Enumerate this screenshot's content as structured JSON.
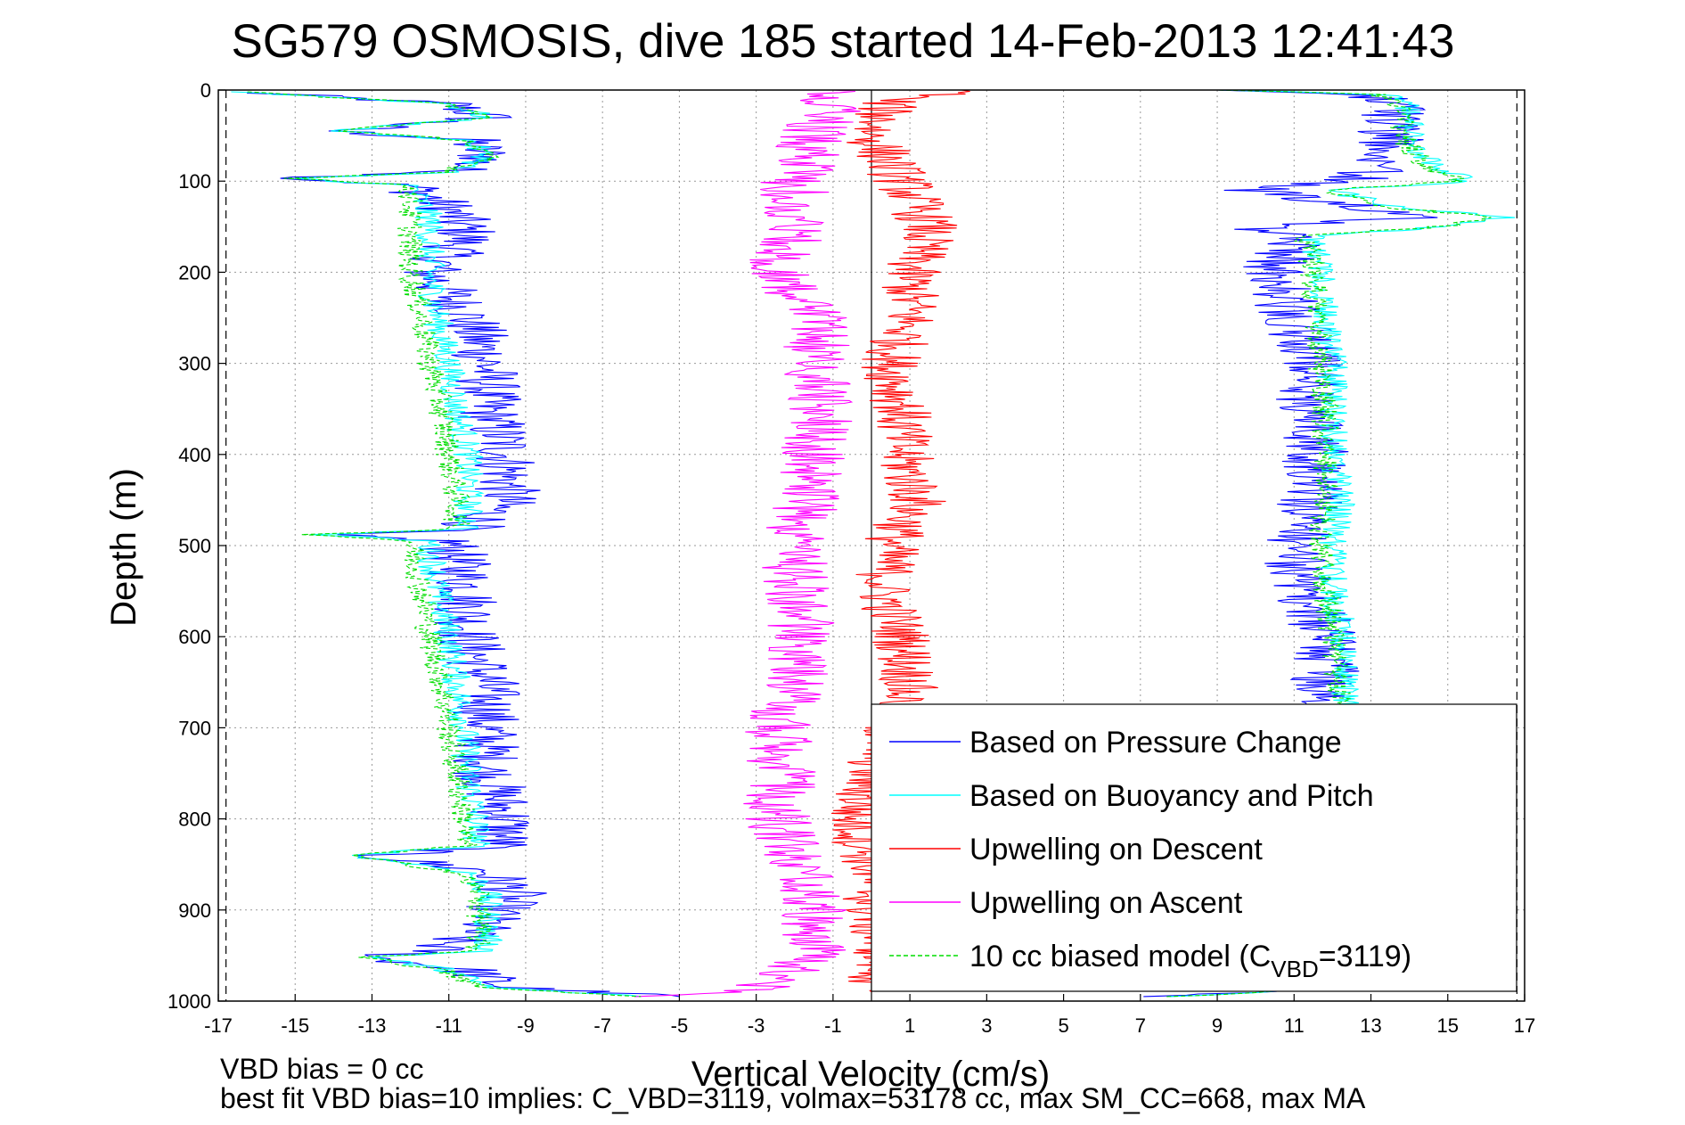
{
  "chart_data": {
    "type": "line",
    "title": "SG579 OSMOSIS, dive 185 started 14-Feb-2013 12:41:43",
    "xlabel": "Vertical Velocity (cm/s)",
    "ylabel": "Depth (m)",
    "xlim": [
      -17,
      17
    ],
    "ylim": [
      0,
      1000
    ],
    "y_reversed": true,
    "grid": true,
    "legend_position": "bottom-right",
    "x_ticks": [
      -17,
      -15,
      -13,
      -11,
      -9,
      -7,
      -5,
      -3,
      -1,
      1,
      3,
      5,
      7,
      9,
      11,
      13,
      15,
      17
    ],
    "y_ticks": [
      0,
      100,
      200,
      300,
      400,
      500,
      600,
      700,
      800,
      900,
      1000
    ],
    "x_tick_labels": [
      "-17",
      "-15",
      "-13",
      "-11",
      "-9",
      "-7",
      "-5",
      "-3",
      "-1",
      "1",
      "3",
      "5",
      "7",
      "9",
      "11",
      "13",
      "15",
      "17"
    ],
    "y_tick_labels": [
      "0",
      "100",
      "200",
      "300",
      "400",
      "500",
      "600",
      "700",
      "800",
      "900",
      "1000"
    ],
    "reference_lines": {
      "dashed_x": [
        -16.8,
        16.8
      ],
      "solid_x": 0
    },
    "series": [
      {
        "name": "Based on Pressure Change",
        "color": "#0000ff",
        "style": "solid",
        "noise": 0.9,
        "descent": [
          [
            2,
            -16.5
          ],
          [
            15,
            -11
          ],
          [
            30,
            -10
          ],
          [
            45,
            -14
          ],
          [
            55,
            -10.5
          ],
          [
            75,
            -10
          ],
          [
            90,
            -11
          ],
          [
            97,
            -15
          ],
          [
            105,
            -12
          ],
          [
            130,
            -11
          ],
          [
            160,
            -10.5
          ],
          [
            200,
            -11.5
          ],
          [
            250,
            -10.5
          ],
          [
            300,
            -10
          ],
          [
            350,
            -10
          ],
          [
            400,
            -9.5
          ],
          [
            450,
            -9.5
          ],
          [
            482,
            -10.5
          ],
          [
            488,
            -14.5
          ],
          [
            495,
            -11
          ],
          [
            550,
            -10.5
          ],
          [
            600,
            -10.5
          ],
          [
            650,
            -10
          ],
          [
            700,
            -10
          ],
          [
            750,
            -10
          ],
          [
            800,
            -9.5
          ],
          [
            830,
            -9.7
          ],
          [
            840,
            -13
          ],
          [
            858,
            -10
          ],
          [
            880,
            -9.3
          ],
          [
            920,
            -10.2
          ],
          [
            945,
            -11.5
          ],
          [
            952,
            -13
          ],
          [
            966,
            -10.5
          ],
          [
            985,
            -9.5
          ],
          [
            995,
            -5
          ]
        ],
        "ascent": [
          [
            995,
            7
          ],
          [
            985,
            12
          ],
          [
            950,
            12
          ],
          [
            900,
            12
          ],
          [
            850,
            12
          ],
          [
            800,
            12
          ],
          [
            750,
            12
          ],
          [
            700,
            12
          ],
          [
            650,
            11.8
          ],
          [
            600,
            11.8
          ],
          [
            550,
            11.3
          ],
          [
            500,
            11
          ],
          [
            450,
            11.5
          ],
          [
            400,
            11.6
          ],
          [
            350,
            11.3
          ],
          [
            300,
            11.5
          ],
          [
            250,
            11
          ],
          [
            200,
            10.5
          ],
          [
            160,
            11
          ],
          [
            150,
            10
          ],
          [
            140,
            14
          ],
          [
            128,
            13
          ],
          [
            110,
            10
          ],
          [
            100,
            12.5
          ],
          [
            80,
            13.5
          ],
          [
            50,
            13.5
          ],
          [
            20,
            13.5
          ],
          [
            5,
            13
          ],
          [
            0,
            9
          ]
        ]
      },
      {
        "name": "Based on Buoyancy and Pitch",
        "color": "#00ffff",
        "style": "solid",
        "noise": 0.4,
        "descent": [
          [
            2,
            -16.5
          ],
          [
            15,
            -11
          ],
          [
            30,
            -10
          ],
          [
            45,
            -14
          ],
          [
            55,
            -10.5
          ],
          [
            75,
            -10
          ],
          [
            90,
            -11
          ],
          [
            97,
            -15
          ],
          [
            105,
            -12
          ],
          [
            140,
            -11.5
          ],
          [
            200,
            -11.5
          ],
          [
            250,
            -11.3
          ],
          [
            300,
            -11
          ],
          [
            350,
            -10.8
          ],
          [
            400,
            -10.5
          ],
          [
            450,
            -10.5
          ],
          [
            482,
            -10.5
          ],
          [
            488,
            -14.5
          ],
          [
            495,
            -11.5
          ],
          [
            550,
            -11.3
          ],
          [
            600,
            -11
          ],
          [
            650,
            -10.8
          ],
          [
            700,
            -10.6
          ],
          [
            750,
            -10.5
          ],
          [
            800,
            -10.3
          ],
          [
            830,
            -10.3
          ],
          [
            840,
            -13.5
          ],
          [
            858,
            -10.5
          ],
          [
            880,
            -10
          ],
          [
            920,
            -10
          ],
          [
            945,
            -10
          ],
          [
            952,
            -13
          ],
          [
            966,
            -11
          ],
          [
            985,
            -10
          ],
          [
            995,
            -6
          ]
        ],
        "ascent": [
          [
            995,
            8
          ],
          [
            985,
            12.5
          ],
          [
            950,
            12.5
          ],
          [
            900,
            12.5
          ],
          [
            850,
            12.5
          ],
          [
            800,
            12.5
          ],
          [
            750,
            12.5
          ],
          [
            700,
            12.5
          ],
          [
            650,
            12.3
          ],
          [
            600,
            12.3
          ],
          [
            550,
            12
          ],
          [
            500,
            12
          ],
          [
            450,
            12.2
          ],
          [
            400,
            12
          ],
          [
            350,
            12
          ],
          [
            300,
            12
          ],
          [
            250,
            11.8
          ],
          [
            200,
            11.7
          ],
          [
            160,
            11.5
          ],
          [
            150,
            15
          ],
          [
            140,
            16.5
          ],
          [
            128,
            13.5
          ],
          [
            110,
            12
          ],
          [
            100,
            15.5
          ],
          [
            80,
            14.5
          ],
          [
            50,
            14
          ],
          [
            20,
            14
          ],
          [
            5,
            13.5
          ],
          [
            0,
            9
          ]
        ]
      },
      {
        "name": "Upwelling on Descent",
        "color": "#ff0000",
        "style": "solid",
        "noise": 0.8,
        "descent": [
          [
            0,
            3
          ],
          [
            10,
            0.5
          ],
          [
            50,
            0
          ],
          [
            100,
            0.8
          ],
          [
            150,
            1.5
          ],
          [
            200,
            1
          ],
          [
            250,
            1
          ],
          [
            300,
            0.5
          ],
          [
            350,
            0.8
          ],
          [
            400,
            0.8
          ],
          [
            450,
            1.2
          ],
          [
            500,
            0.5
          ],
          [
            550,
            0.3
          ],
          [
            600,
            0.8
          ],
          [
            650,
            1
          ],
          [
            700,
            0.5
          ],
          [
            750,
            0
          ],
          [
            800,
            -0.5
          ],
          [
            850,
            0
          ],
          [
            900,
            0
          ],
          [
            950,
            0.3
          ],
          [
            990,
            0
          ]
        ],
        "ascent": []
      },
      {
        "name": "Upwelling on Ascent",
        "color": "#ff00ff",
        "style": "solid",
        "noise": 0.9,
        "descent": [],
        "ascent": [
          [
            995,
            -7
          ],
          [
            990,
            -3
          ],
          [
            950,
            -1.5
          ],
          [
            900,
            -1.5
          ],
          [
            850,
            -2
          ],
          [
            800,
            -2.5
          ],
          [
            750,
            -2.3
          ],
          [
            700,
            -2.5
          ],
          [
            650,
            -2
          ],
          [
            600,
            -1.8
          ],
          [
            550,
            -2
          ],
          [
            500,
            -2
          ],
          [
            450,
            -1.7
          ],
          [
            400,
            -1.5
          ],
          [
            350,
            -1.3
          ],
          [
            300,
            -1.5
          ],
          [
            250,
            -1.2
          ],
          [
            200,
            -2.5
          ],
          [
            150,
            -2
          ],
          [
            100,
            -2
          ],
          [
            50,
            -1.5
          ],
          [
            10,
            -1
          ],
          [
            0,
            -1
          ]
        ]
      },
      {
        "name": "10 cc biased model (C",
        "name_sub": "VBD",
        "name_tail": "=3119)",
        "color": "#00dd00",
        "style": "dashed",
        "noise": 0.35,
        "descent": [
          [
            2,
            -16.5
          ],
          [
            15,
            -11
          ],
          [
            30,
            -10
          ],
          [
            45,
            -14
          ],
          [
            55,
            -10.5
          ],
          [
            75,
            -10
          ],
          [
            90,
            -11
          ],
          [
            97,
            -15
          ],
          [
            105,
            -12
          ],
          [
            140,
            -12
          ],
          [
            200,
            -12
          ],
          [
            250,
            -11.7
          ],
          [
            300,
            -11.5
          ],
          [
            350,
            -11.2
          ],
          [
            400,
            -11
          ],
          [
            450,
            -10.8
          ],
          [
            482,
            -10.8
          ],
          [
            488,
            -14.5
          ],
          [
            495,
            -12
          ],
          [
            550,
            -11.7
          ],
          [
            600,
            -11.5
          ],
          [
            650,
            -11.2
          ],
          [
            700,
            -11
          ],
          [
            750,
            -10.8
          ],
          [
            800,
            -10.6
          ],
          [
            830,
            -10.6
          ],
          [
            840,
            -13.7
          ],
          [
            858,
            -10.8
          ],
          [
            880,
            -10.2
          ],
          [
            920,
            -10.2
          ],
          [
            945,
            -10.3
          ],
          [
            952,
            -13.2
          ],
          [
            966,
            -11.2
          ],
          [
            985,
            -10.2
          ],
          [
            995,
            -6
          ]
        ],
        "ascent": [
          [
            995,
            8
          ],
          [
            985,
            12.3
          ],
          [
            950,
            12.3
          ],
          [
            900,
            12.3
          ],
          [
            850,
            12.3
          ],
          [
            800,
            12.3
          ],
          [
            750,
            12.3
          ],
          [
            700,
            12.3
          ],
          [
            650,
            12.1
          ],
          [
            600,
            12
          ],
          [
            550,
            11.8
          ],
          [
            500,
            11.7
          ],
          [
            450,
            11.8
          ],
          [
            400,
            11.8
          ],
          [
            350,
            11.8
          ],
          [
            300,
            11.7
          ],
          [
            250,
            11.6
          ],
          [
            200,
            11.5
          ],
          [
            160,
            11.3
          ],
          [
            150,
            14.8
          ],
          [
            140,
            16.3
          ],
          [
            128,
            13.3
          ],
          [
            110,
            11.8
          ],
          [
            100,
            15.3
          ],
          [
            80,
            14.3
          ],
          [
            50,
            13.8
          ],
          [
            20,
            13.8
          ],
          [
            5,
            13.3
          ],
          [
            0,
            9
          ]
        ]
      }
    ]
  },
  "annotations": {
    "line1": "VBD bias = 0 cc",
    "line2": "best fit VBD bias=10 implies: C_VBD=3119, volmax=53178 cc, max SM_CC=668, max MA"
  }
}
